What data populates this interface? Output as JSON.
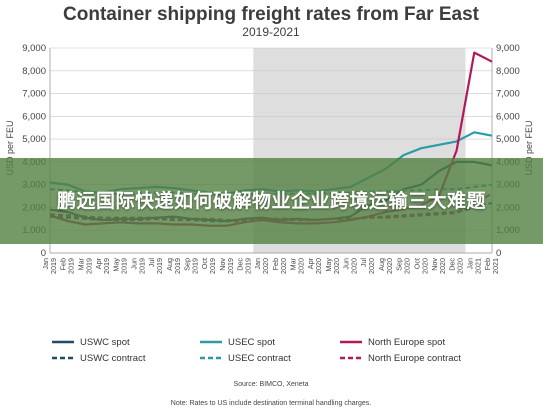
{
  "chart_data": {
    "type": "line",
    "title": "Container shipping freight rates from Far East",
    "subtitle": "2019-2021",
    "ylabel": "USD per FEU",
    "ylim": [
      0,
      9000
    ],
    "yticks": [
      "0",
      "1,000",
      "2,000",
      "3,000",
      "4,000",
      "5,000",
      "6,000",
      "7,000",
      "8,000",
      "9,000"
    ],
    "categories": [
      "Jan 2019",
      "Feb 2019",
      "Mar 2019",
      "Apr 2019",
      "May 2019",
      "Jun 2019",
      "Jul 2019",
      "Aug 2019",
      "Sep 2019",
      "Oct 2019",
      "Nov 2019",
      "Dec 2019",
      "Jan 2020",
      "Feb 2020",
      "Mar 2020",
      "Apr 2020",
      "May 2020",
      "Jun 2020",
      "Jul 2020",
      "Aug 2020",
      "Sep 2020",
      "Oct 2020",
      "Nov 2020",
      "Dec 2020",
      "Jan 2021",
      "Feb 2021"
    ],
    "shaded_range": [
      "Jan 2020",
      "Dec 2020"
    ],
    "grid": true,
    "series": [
      {
        "name": "USWC spot",
        "color": "#1f4e63",
        "dash": "solid",
        "values": [
          1900,
          1800,
          1550,
          1450,
          1500,
          1500,
          1550,
          1600,
          1500,
          1450,
          1400,
          1500,
          1550,
          1450,
          1500,
          1450,
          1500,
          1600,
          2100,
          2300,
          2800,
          3000,
          3600,
          4000,
          4000,
          3850
        ]
      },
      {
        "name": "USWC contract",
        "color": "#1f4e63",
        "dash": "dashed",
        "values": [
          1600,
          1550,
          1500,
          1450,
          1450,
          1450,
          1500,
          1450,
          1450,
          1400,
          1400,
          1400,
          1450,
          1450,
          1450,
          1450,
          1500,
          1500,
          1550,
          1600,
          1650,
          1700,
          1750,
          1800,
          2000,
          2200
        ]
      },
      {
        "name": "USEC spot",
        "color": "#2c9ba6",
        "dash": "solid",
        "values": [
          3100,
          3000,
          2700,
          2650,
          2800,
          2850,
          2900,
          2850,
          2750,
          2650,
          2600,
          2750,
          2800,
          2700,
          2750,
          2700,
          2800,
          2900,
          3300,
          3700,
          4300,
          4600,
          4750,
          4900,
          5300,
          5150
        ]
      },
      {
        "name": "USEC contract",
        "color": "#2c9ba6",
        "dash": "dashed",
        "values": [
          2800,
          2750,
          2650,
          2600,
          2600,
          2600,
          2650,
          2650,
          2600,
          2600,
          2550,
          2550,
          2600,
          2600,
          2600,
          2600,
          2650,
          2650,
          2700,
          2700,
          2750,
          2750,
          2800,
          2800,
          2900,
          3000
        ]
      },
      {
        "name": "North Europe spot",
        "color": "#b0195c",
        "dash": "solid",
        "values": [
          1650,
          1400,
          1250,
          1300,
          1350,
          1300,
          1300,
          1250,
          1250,
          1200,
          1200,
          1350,
          1450,
          1350,
          1300,
          1300,
          1350,
          1450,
          1600,
          1800,
          1950,
          2100,
          2500,
          4500,
          8800,
          8400
        ]
      },
      {
        "name": "North Europe contract",
        "color": "#b0195c",
        "dash": "dashed",
        "values": [
          1700,
          1650,
          1600,
          1550,
          1550,
          1550,
          1550,
          1500,
          1500,
          1500,
          1450,
          1450,
          1500,
          1500,
          1500,
          1450,
          1500,
          1500,
          1550,
          1550,
          1600,
          1650,
          1700,
          1750,
          2200,
          2600
        ]
      }
    ],
    "legend_position": "bottom",
    "annotations": [
      "Source: BIMCO, Xeneta",
      "Note: Rates to US include destination terminal handling charges."
    ]
  },
  "overlay": {
    "headline": "鹏远国际快递如何破解物业企业跨境运输三大难题"
  }
}
